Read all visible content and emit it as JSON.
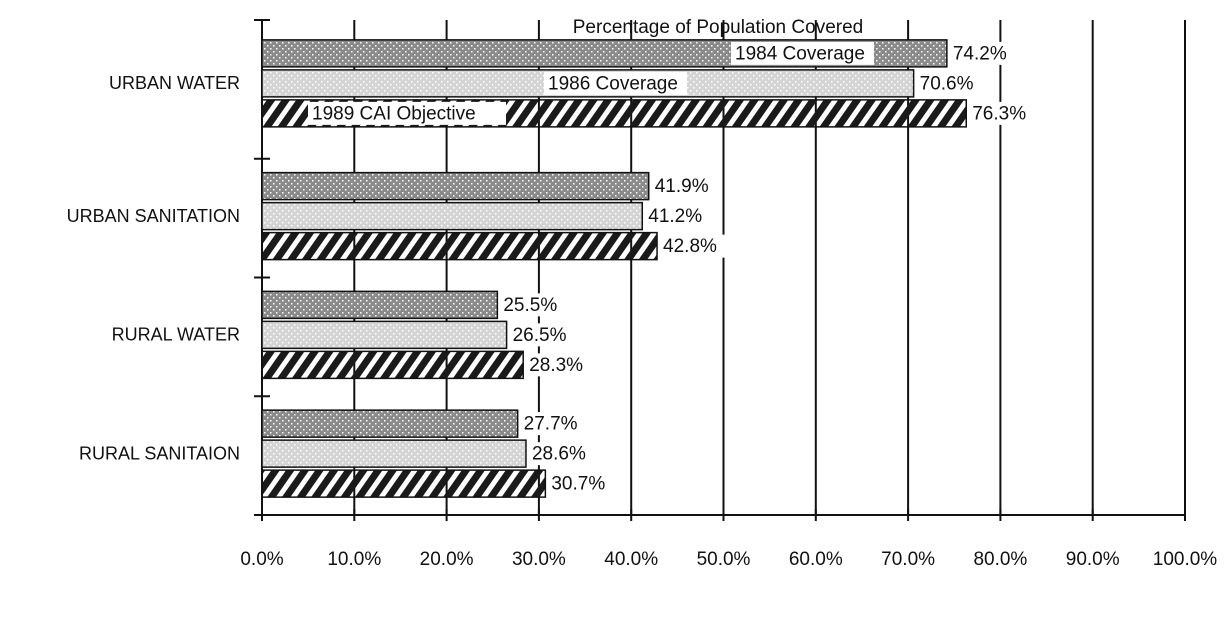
{
  "chart_data": {
    "type": "hbar",
    "title": "Percentage of Population Covered",
    "categories": [
      "URBAN WATER",
      "URBAN SANITATION",
      "RURAL WATER",
      "RURAL SANITAION"
    ],
    "series": [
      {
        "name": "1984 Coverage",
        "color": "#8a8a8a",
        "pattern": "dots",
        "values": [
          74.2,
          41.9,
          25.5,
          27.7
        ],
        "value_labels": [
          "74.2%",
          "41.9%",
          "25.5%",
          "27.7%"
        ]
      },
      {
        "name": "1986 Coverage",
        "color": "#d4d4d4",
        "pattern": "dots",
        "values": [
          70.6,
          41.2,
          26.5,
          28.6
        ],
        "value_labels": [
          "70.6%",
          "41.2%",
          "26.5%",
          "28.6%"
        ]
      },
      {
        "name": "1989 CAI Objective",
        "color": "#1a1a1a",
        "pattern": "hatch",
        "values": [
          76.3,
          42.8,
          28.3,
          30.7
        ],
        "value_labels": [
          "76.3%",
          "42.8%",
          "28.3%",
          "30.7%"
        ]
      }
    ],
    "xlim": [
      0,
      100
    ],
    "xticks": [
      {
        "value": 0,
        "label": "0.0%"
      },
      {
        "value": 10,
        "label": "10.0%"
      },
      {
        "value": 20,
        "label": "20.0%"
      },
      {
        "value": 30,
        "label": "30.0%"
      },
      {
        "value": 40,
        "label": "40.0%"
      },
      {
        "value": 50,
        "label": "50.0%"
      },
      {
        "value": 60,
        "label": "60.0%"
      },
      {
        "value": 70,
        "label": "70.0%"
      },
      {
        "value": 80,
        "label": "80.0%"
      },
      {
        "value": 90,
        "label": "90.0%"
      },
      {
        "value": 100,
        "label": "100.0%"
      }
    ],
    "grid": true
  }
}
